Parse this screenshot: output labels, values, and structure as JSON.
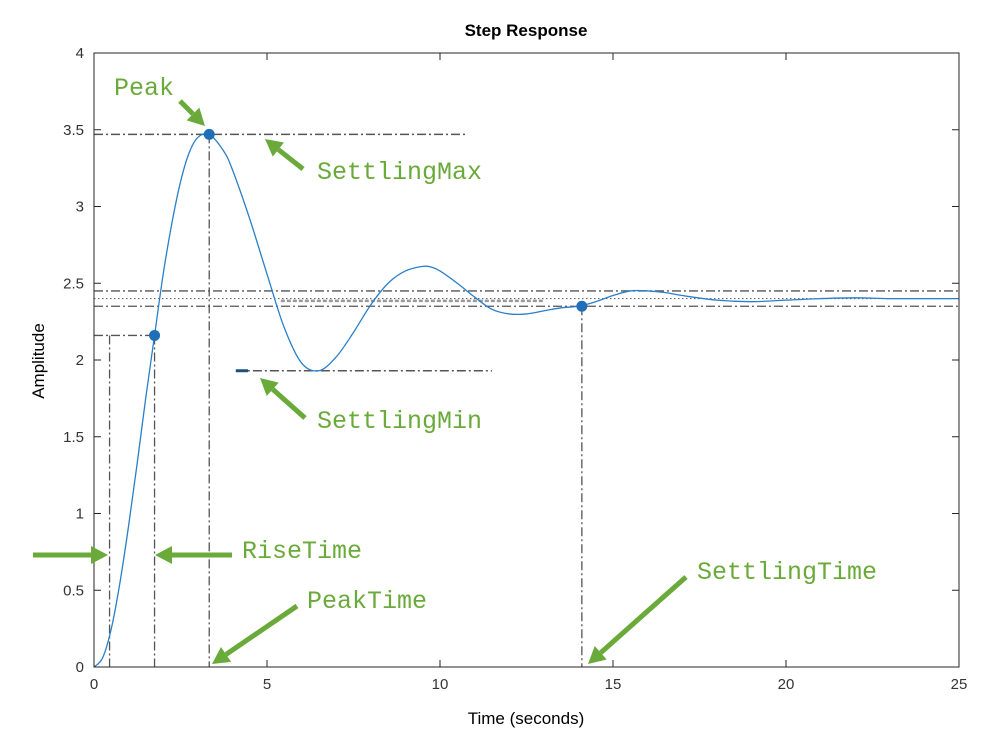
{
  "chart_data": {
    "type": "line",
    "title": "Step Response",
    "xlabel": "Time (seconds)",
    "ylabel": "Amplitude",
    "xlim": [
      0,
      25
    ],
    "ylim": [
      0,
      4
    ],
    "xticks": [
      0,
      5,
      10,
      15,
      20,
      25
    ],
    "xtick_labels": [
      "0",
      "5",
      "10",
      "15",
      "20",
      "25"
    ],
    "yticks": [
      0,
      0.5,
      1,
      1.5,
      2,
      2.5,
      3,
      3.5,
      4
    ],
    "ytick_labels": [
      "0",
      "0.5",
      "1",
      "1.5",
      "2",
      "2.5",
      "3",
      "3.5",
      "4"
    ],
    "grid": false,
    "series": [
      {
        "color": "#2a7fc9",
        "x": [
          0,
          0.25,
          0.5,
          0.75,
          1.0,
          1.25,
          1.5,
          1.75,
          2.0,
          2.25,
          2.5,
          2.75,
          3.0,
          3.33,
          3.75,
          4.0,
          4.5,
          5.0,
          5.5,
          6.0,
          6.5,
          7.0,
          7.5,
          8.0,
          8.5,
          9.0,
          9.5,
          9.75,
          10.0,
          10.5,
          11.0,
          11.5,
          12.0,
          12.5,
          13.0,
          13.5,
          14.0,
          14.5,
          15.0,
          15.5,
          16.0,
          16.5,
          17.0,
          18.0,
          19.0,
          20.0,
          21.0,
          22.0,
          23.0,
          24.0,
          25.0
        ],
        "y": [
          0,
          0.06,
          0.25,
          0.55,
          0.92,
          1.33,
          1.76,
          2.16,
          2.56,
          2.89,
          3.16,
          3.35,
          3.45,
          3.47,
          3.36,
          3.24,
          2.92,
          2.56,
          2.21,
          1.98,
          1.93,
          2.02,
          2.18,
          2.36,
          2.5,
          2.58,
          2.61,
          2.605,
          2.58,
          2.5,
          2.41,
          2.33,
          2.3,
          2.3,
          2.32,
          2.34,
          2.35,
          2.38,
          2.42,
          2.45,
          2.45,
          2.44,
          2.42,
          2.39,
          2.38,
          2.39,
          2.4,
          2.405,
          2.4,
          2.4,
          2.4
        ]
      }
    ],
    "final_value": 2.4,
    "settling_band": [
      2.35,
      2.45
    ],
    "metrics": {
      "rise_time_start": 0.45,
      "rise_time_end": 1.75,
      "rise_level": 2.16,
      "peak_time": 3.33,
      "peak": 3.47,
      "settling_time": 14.1,
      "settling_level": 2.35,
      "settling_max": 3.47,
      "settling_min": 1.93
    },
    "annotations": [
      {
        "key": "peak",
        "text": "Peak"
      },
      {
        "key": "settling_max",
        "text": "SettlingMax"
      },
      {
        "key": "settling_min",
        "text": "SettlingMin"
      },
      {
        "key": "rise_time",
        "text": "RiseTime"
      },
      {
        "key": "peak_time",
        "text": "PeakTime"
      },
      {
        "key": "settling_time",
        "text": "SettlingTime"
      }
    ],
    "colors": {
      "line": "#2a7fc9",
      "marker": "#1f6fb8",
      "annotation": "#6aaa3a",
      "reference": "#555555"
    }
  }
}
